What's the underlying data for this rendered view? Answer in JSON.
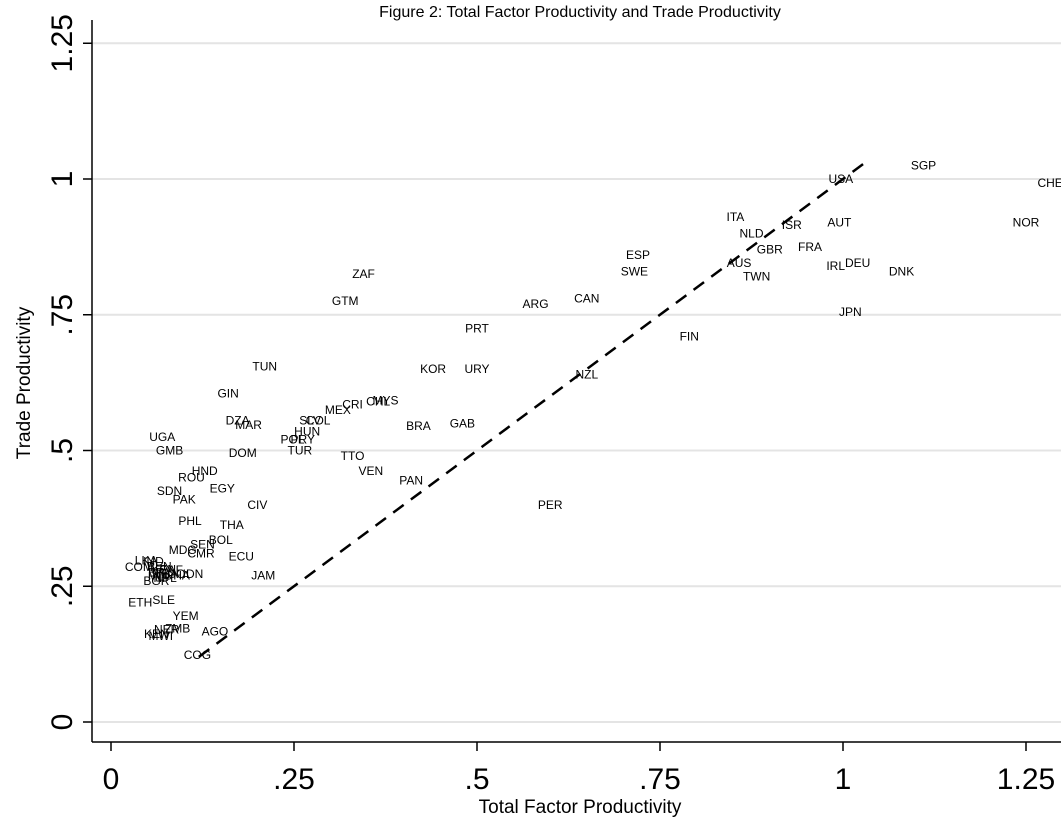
{
  "chart_data": {
    "type": "scatter",
    "title": "Figure 2:  Total Factor Productivity and Trade Productivity",
    "xlabel": "Total Factor Productivity",
    "ylabel": "Trade Productivity",
    "xlim": [
      0,
      1.25
    ],
    "ylim": [
      0,
      1.25
    ],
    "xticks": [
      {
        "v": 0,
        "label": "0"
      },
      {
        "v": 0.25,
        "label": ".25"
      },
      {
        "v": 0.5,
        "label": ".5"
      },
      {
        "v": 0.75,
        "label": ".75"
      },
      {
        "v": 1,
        "label": "1"
      },
      {
        "v": 1.25,
        "label": "1.25"
      }
    ],
    "yticks": [
      {
        "v": 0,
        "label": "0"
      },
      {
        "v": 0.25,
        "label": ".25"
      },
      {
        "v": 0.5,
        "label": ".5"
      },
      {
        "v": 0.75,
        "label": ".75"
      },
      {
        "v": 1,
        "label": "1"
      },
      {
        "v": 1.25,
        "label": "1.25"
      }
    ],
    "grid": "horizontal",
    "marker": "text-labels",
    "reference_line": {
      "style": "dashed",
      "x": [
        0.12,
        1.03
      ],
      "y": [
        0.12,
        1.03
      ]
    },
    "points": [
      {
        "label": "SGP",
        "x": 1.11,
        "y": 1.025
      },
      {
        "label": "USA",
        "x": 0.997,
        "y": 1.0
      },
      {
        "label": "CHE",
        "x": 1.283,
        "y": 0.993
      },
      {
        "label": "ITA",
        "x": 0.853,
        "y": 0.93
      },
      {
        "label": "ISR",
        "x": 0.93,
        "y": 0.915
      },
      {
        "label": "AUT",
        "x": 0.995,
        "y": 0.92
      },
      {
        "label": "NOR",
        "x": 1.25,
        "y": 0.92
      },
      {
        "label": "NLD",
        "x": 0.875,
        "y": 0.9
      },
      {
        "label": "GBR",
        "x": 0.9,
        "y": 0.87
      },
      {
        "label": "FRA",
        "x": 0.955,
        "y": 0.875
      },
      {
        "label": "ESP",
        "x": 0.72,
        "y": 0.86
      },
      {
        "label": "AUS",
        "x": 0.858,
        "y": 0.845
      },
      {
        "label": "DEU",
        "x": 1.02,
        "y": 0.845
      },
      {
        "label": "IRL",
        "x": 0.99,
        "y": 0.84
      },
      {
        "label": "SWE",
        "x": 0.715,
        "y": 0.83
      },
      {
        "label": "TWN",
        "x": 0.882,
        "y": 0.82
      },
      {
        "label": "DNK",
        "x": 1.08,
        "y": 0.83
      },
      {
        "label": "ZAF",
        "x": 0.345,
        "y": 0.825
      },
      {
        "label": "CAN",
        "x": 0.65,
        "y": 0.78
      },
      {
        "label": "GTM",
        "x": 0.32,
        "y": 0.775
      },
      {
        "label": "ARG",
        "x": 0.58,
        "y": 0.77
      },
      {
        "label": "JPN",
        "x": 1.01,
        "y": 0.755
      },
      {
        "label": "PRT",
        "x": 0.5,
        "y": 0.725
      },
      {
        "label": "FIN",
        "x": 0.79,
        "y": 0.71
      },
      {
        "label": "TUN",
        "x": 0.21,
        "y": 0.655
      },
      {
        "label": "KOR",
        "x": 0.44,
        "y": 0.65
      },
      {
        "label": "URY",
        "x": 0.5,
        "y": 0.65
      },
      {
        "label": "NZL",
        "x": 0.65,
        "y": 0.64
      },
      {
        "label": "GIN",
        "x": 0.16,
        "y": 0.605
      },
      {
        "label": "CHL",
        "x": 0.365,
        "y": 0.59
      },
      {
        "label": "MYS",
        "x": 0.375,
        "y": 0.592
      },
      {
        "label": "CRI",
        "x": 0.33,
        "y": 0.585
      },
      {
        "label": "MEX",
        "x": 0.31,
        "y": 0.575
      },
      {
        "label": "COL",
        "x": 0.283,
        "y": 0.555
      },
      {
        "label": "SLV",
        "x": 0.272,
        "y": 0.555
      },
      {
        "label": "DZA",
        "x": 0.173,
        "y": 0.555
      },
      {
        "label": "MAR",
        "x": 0.188,
        "y": 0.547
      },
      {
        "label": "BRA",
        "x": 0.42,
        "y": 0.545
      },
      {
        "label": "GAB",
        "x": 0.48,
        "y": 0.55
      },
      {
        "label": "HUN",
        "x": 0.268,
        "y": 0.535
      },
      {
        "label": "UGA",
        "x": 0.07,
        "y": 0.525
      },
      {
        "label": "POL",
        "x": 0.248,
        "y": 0.52
      },
      {
        "label": "PRY",
        "x": 0.262,
        "y": 0.52
      },
      {
        "label": "GMB",
        "x": 0.08,
        "y": 0.5
      },
      {
        "label": "TUR",
        "x": 0.258,
        "y": 0.5
      },
      {
        "label": "DOM",
        "x": 0.18,
        "y": 0.495
      },
      {
        "label": "TTO",
        "x": 0.33,
        "y": 0.49
      },
      {
        "label": "HND",
        "x": 0.128,
        "y": 0.462
      },
      {
        "label": "VEN",
        "x": 0.355,
        "y": 0.462
      },
      {
        "label": "ROU",
        "x": 0.11,
        "y": 0.45
      },
      {
        "label": "PAN",
        "x": 0.41,
        "y": 0.445
      },
      {
        "label": "EGY",
        "x": 0.152,
        "y": 0.43
      },
      {
        "label": "SDN",
        "x": 0.08,
        "y": 0.425
      },
      {
        "label": "PAK",
        "x": 0.1,
        "y": 0.41
      },
      {
        "label": "CIV",
        "x": 0.2,
        "y": 0.4
      },
      {
        "label": "PER",
        "x": 0.6,
        "y": 0.4
      },
      {
        "label": "PHL",
        "x": 0.108,
        "y": 0.37
      },
      {
        "label": "THA",
        "x": 0.165,
        "y": 0.363
      },
      {
        "label": "BOL",
        "x": 0.15,
        "y": 0.335
      },
      {
        "label": "SEN",
        "x": 0.125,
        "y": 0.327
      },
      {
        "label": "MDG",
        "x": 0.098,
        "y": 0.317
      },
      {
        "label": "CMR",
        "x": 0.123,
        "y": 0.31
      },
      {
        "label": "ECU",
        "x": 0.178,
        "y": 0.305
      },
      {
        "label": "LKA",
        "x": 0.048,
        "y": 0.297
      },
      {
        "label": "IND",
        "x": 0.058,
        "y": 0.296
      },
      {
        "label": "COM",
        "x": 0.038,
        "y": 0.285
      },
      {
        "label": "BEN",
        "x": 0.066,
        "y": 0.286
      },
      {
        "label": "KEN",
        "x": 0.072,
        "y": 0.281
      },
      {
        "label": "BFA",
        "x": 0.066,
        "y": 0.275
      },
      {
        "label": "NGA",
        "x": 0.074,
        "y": 0.273
      },
      {
        "label": "CAF",
        "x": 0.082,
        "y": 0.28
      },
      {
        "label": "MLI",
        "x": 0.064,
        "y": 0.268
      },
      {
        "label": "NPL",
        "x": 0.074,
        "y": 0.265
      },
      {
        "label": "TGO",
        "x": 0.084,
        "y": 0.273
      },
      {
        "label": "GHA",
        "x": 0.09,
        "y": 0.27
      },
      {
        "label": "IDN",
        "x": 0.112,
        "y": 0.273
      },
      {
        "label": "BGR",
        "x": 0.062,
        "y": 0.26
      },
      {
        "label": "JAM",
        "x": 0.208,
        "y": 0.27
      },
      {
        "label": "SLE",
        "x": 0.072,
        "y": 0.225
      },
      {
        "label": "ETH",
        "x": 0.04,
        "y": 0.22
      },
      {
        "label": "YEM",
        "x": 0.102,
        "y": 0.195
      },
      {
        "label": "NER",
        "x": 0.076,
        "y": 0.17
      },
      {
        "label": "ZMB",
        "x": 0.091,
        "y": 0.172
      },
      {
        "label": "AGO",
        "x": 0.142,
        "y": 0.167
      },
      {
        "label": "KEN",
        "x": 0.062,
        "y": 0.162
      },
      {
        "label": "MWI",
        "x": 0.068,
        "y": 0.158
      },
      {
        "label": "COG",
        "x": 0.118,
        "y": 0.123
      }
    ]
  }
}
